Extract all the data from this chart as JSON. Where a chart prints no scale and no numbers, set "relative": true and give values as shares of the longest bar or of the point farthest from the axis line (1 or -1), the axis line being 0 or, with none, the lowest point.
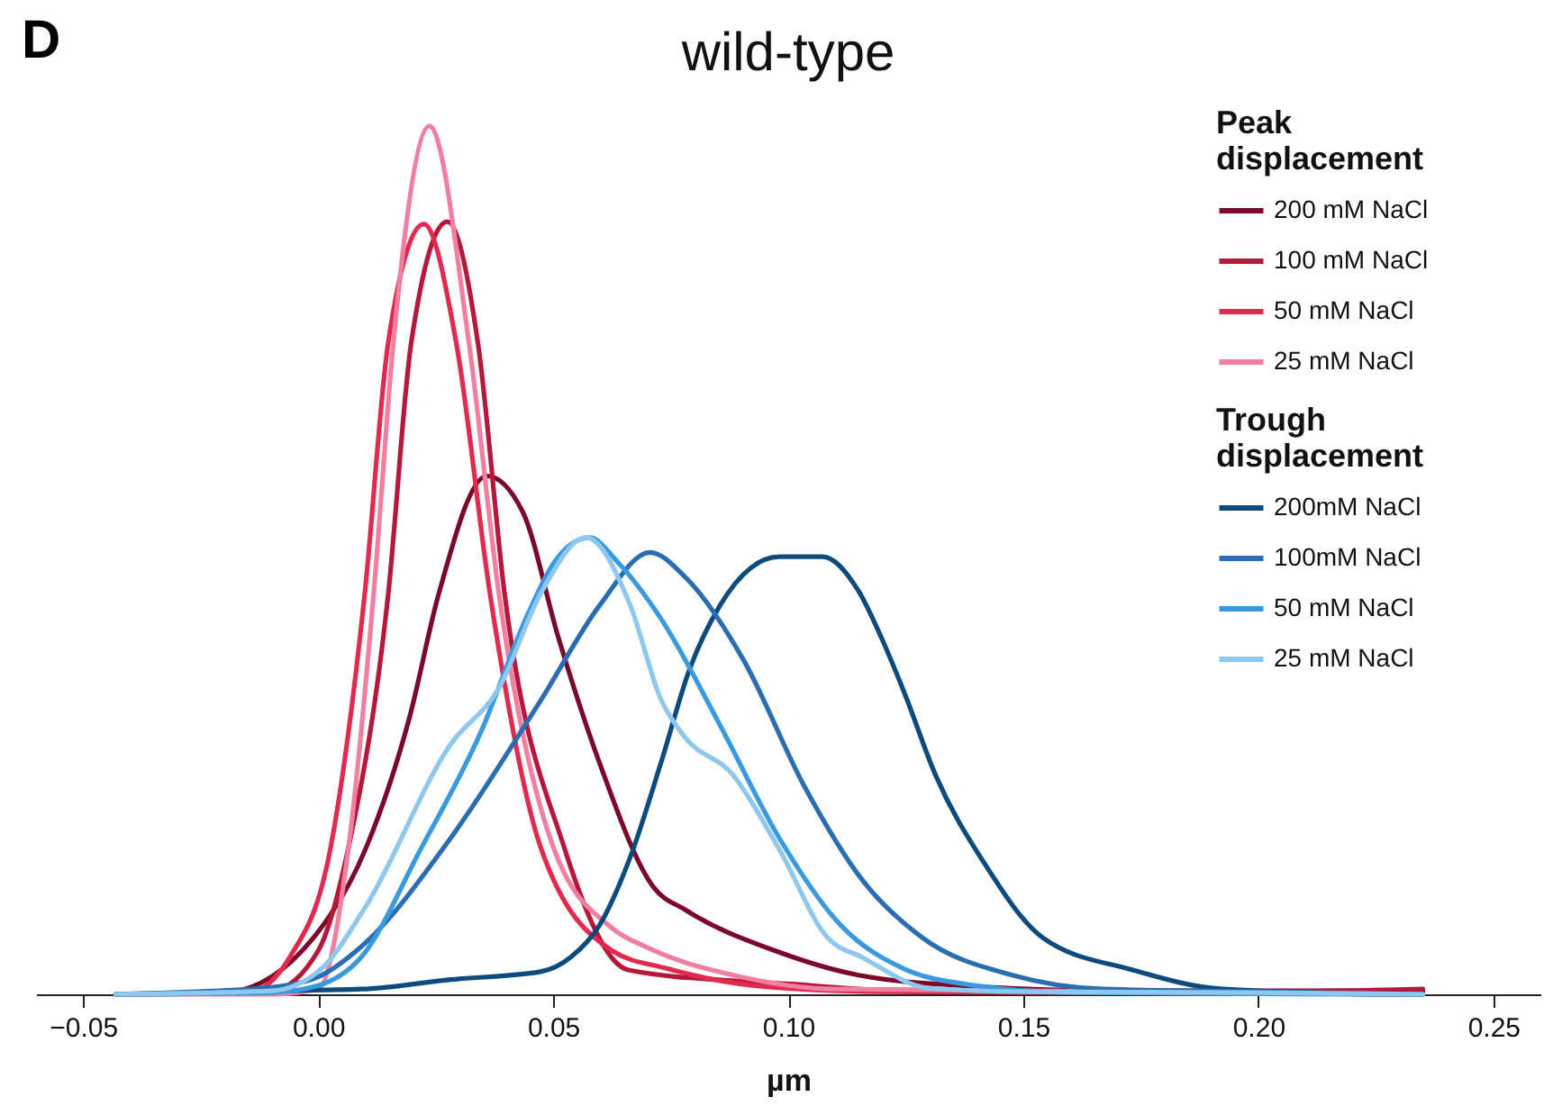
{
  "chart_data": {
    "type": "line",
    "title": "wild-type",
    "xlabel": "µm",
    "annotations": [
      "D"
    ],
    "legend_title": [
      "Peak displacement",
      "Trough displacement"
    ],
    "legend": "top right",
    "relative": true,
    "grid": false,
    "xlim": [
      -0.06,
      0.26
    ],
    "xticks": [
      {
        "value": -0.05,
        "label": "−0.05"
      },
      {
        "value": 0,
        "label": "0.00"
      },
      {
        "value": 0.05,
        "label": "0.05"
      },
      {
        "value": 0.1,
        "label": "0.10"
      },
      {
        "value": 0.15,
        "label": "0.15"
      },
      {
        "value": 0.2,
        "label": "0.20"
      },
      {
        "value": 0.25,
        "label": "0.25"
      }
    ],
    "series": [
      {
        "name": "200 mM NaCl",
        "color": "#7b0a2a",
        "x": [
          -0.043,
          -0.02,
          -0.001,
          0.0103,
          0.0195,
          0.0256,
          0.0359,
          0.0435,
          0.0511,
          0.0599,
          0.0714,
          0.0782,
          0.0973,
          0.115,
          0.14,
          0.17,
          0.235
        ],
        "values": [
          0,
          0.002,
          0.065,
          0.17,
          0.32,
          0.46,
          0.597,
          0.556,
          0.411,
          0.266,
          0.123,
          0.097,
          0.05,
          0.022,
          0.009,
          0.004,
          0.004
        ]
      },
      {
        "name": "100 mM NaCl",
        "color": "#b5183a",
        "x": [
          -0.043,
          -0.01,
          0,
          0.0065,
          0.0149,
          0.0198,
          0.0275,
          0.034,
          0.0397,
          0.0523,
          0.066,
          0.09,
          0.1,
          0.12,
          0.2,
          0.235
        ],
        "values": [
          0,
          0.004,
          0.05,
          0.17,
          0.46,
          0.75,
          0.89,
          0.75,
          0.46,
          0.17,
          0.028,
          0.015,
          0.012,
          0.005,
          0.003,
          0.006
        ]
      },
      {
        "name": "50 mM NaCl",
        "color": "#e02a50",
        "x": [
          -0.043,
          -0.015,
          -0.006,
          0.0027,
          0.0099,
          0.0149,
          0.0225,
          0.0294,
          0.0366,
          0.0473,
          0.0626,
          0.074,
          0.093,
          0.12,
          0.235
        ],
        "values": [
          0,
          0.002,
          0.043,
          0.17,
          0.46,
          0.75,
          0.887,
          0.75,
          0.46,
          0.17,
          0.05,
          0.03,
          0.01,
          0.003,
          0
        ]
      },
      {
        "name": "25 mM NaCl",
        "color": "#f07fa0",
        "x": [
          -0.043,
          -0.01,
          0,
          0.0065,
          0.0118,
          0.016,
          0.0237,
          0.0321,
          0.0385,
          0.05,
          0.0626,
          0.07,
          0.09,
          0.11,
          0.235
        ],
        "values": [
          0,
          0,
          0.006,
          0.17,
          0.46,
          0.75,
          1,
          0.75,
          0.46,
          0.17,
          0.076,
          0.054,
          0.02,
          0.006,
          0
        ]
      },
      {
        "name": "200mM NaCl",
        "color": "#0d4a7e",
        "x": [
          -0.043,
          -0.01,
          0.0092,
          0.0282,
          0.0473,
          0.0538,
          0.0599,
          0.0664,
          0.0729,
          0.079,
          0.0855,
          0.092,
          0.0981,
          0.1073,
          0.1149,
          0.1198,
          0.1248,
          0.1313,
          0.1416,
          0.1542,
          0.1733,
          0.1924,
          0.2305,
          0.235
        ],
        "values": [
          0,
          0.004,
          0.006,
          0.017,
          0.026,
          0.043,
          0.08,
          0.158,
          0.266,
          0.374,
          0.448,
          0.491,
          0.504,
          0.504,
          0.465,
          0.411,
          0.346,
          0.253,
          0.152,
          0.065,
          0.028,
          0.006,
          0,
          0
        ]
      },
      {
        "name": "100mM NaCl",
        "color": "#2a6db0",
        "x": [
          -0.043,
          -0.01,
          0,
          0.0092,
          0.0282,
          0.0473,
          0.0599,
          0.0706,
          0.0782,
          0.0905,
          0.1034,
          0.116,
          0.1286,
          0.1477,
          0.1668,
          0.2,
          0.235
        ],
        "values": [
          0,
          0.008,
          0.02,
          0.055,
          0.18,
          0.338,
          0.448,
          0.509,
          0.48,
          0.385,
          0.24,
          0.13,
          0.065,
          0.022,
          0.006,
          0.003,
          0
        ]
      },
      {
        "name": "50 mM NaCl",
        "color": "#3a9ae0",
        "x": [
          -0.043,
          -0.01,
          0,
          0.0092,
          0.0218,
          0.0347,
          0.0447,
          0.0511,
          0.0578,
          0.0637,
          0.0729,
          0.0855,
          0.0981,
          0.1111,
          0.1244,
          0.14,
          0.16,
          0.235
        ],
        "values": [
          0,
          0.002,
          0.01,
          0.043,
          0.167,
          0.303,
          0.439,
          0.504,
          0.526,
          0.498,
          0.433,
          0.31,
          0.18,
          0.08,
          0.03,
          0.01,
          0.002,
          0
        ]
      },
      {
        "name": "25 mM NaCl",
        "color": "#8ec8ee",
        "x": [
          -0.043,
          -0.01,
          0.0004,
          0.01,
          0.0282,
          0.0385,
          0.0473,
          0.057,
          0.0664,
          0.0729,
          0.0779,
          0.0882,
          0.0981,
          0.1084,
          0.1156,
          0.13,
          0.15,
          0.2,
          0.235
        ],
        "values": [
          0,
          0.004,
          0.028,
          0.1,
          0.288,
          0.353,
          0.461,
          0.526,
          0.448,
          0.34,
          0.297,
          0.253,
          0.167,
          0.065,
          0.043,
          0.007,
          0.003,
          0.002,
          0
        ]
      }
    ]
  }
}
